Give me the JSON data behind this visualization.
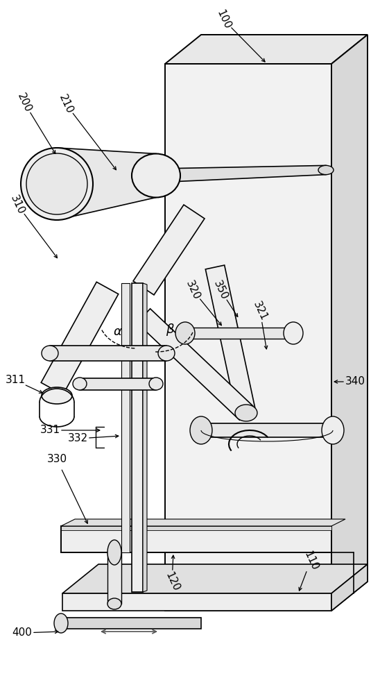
{
  "bg": "#ffffff",
  "lc": "#000000",
  "fc_light": "#f0f0f0",
  "fc_mid": "#e0e0e0",
  "fc_dark": "#cccccc",
  "figsize": [
    5.48,
    10.0
  ],
  "dpi": 100
}
